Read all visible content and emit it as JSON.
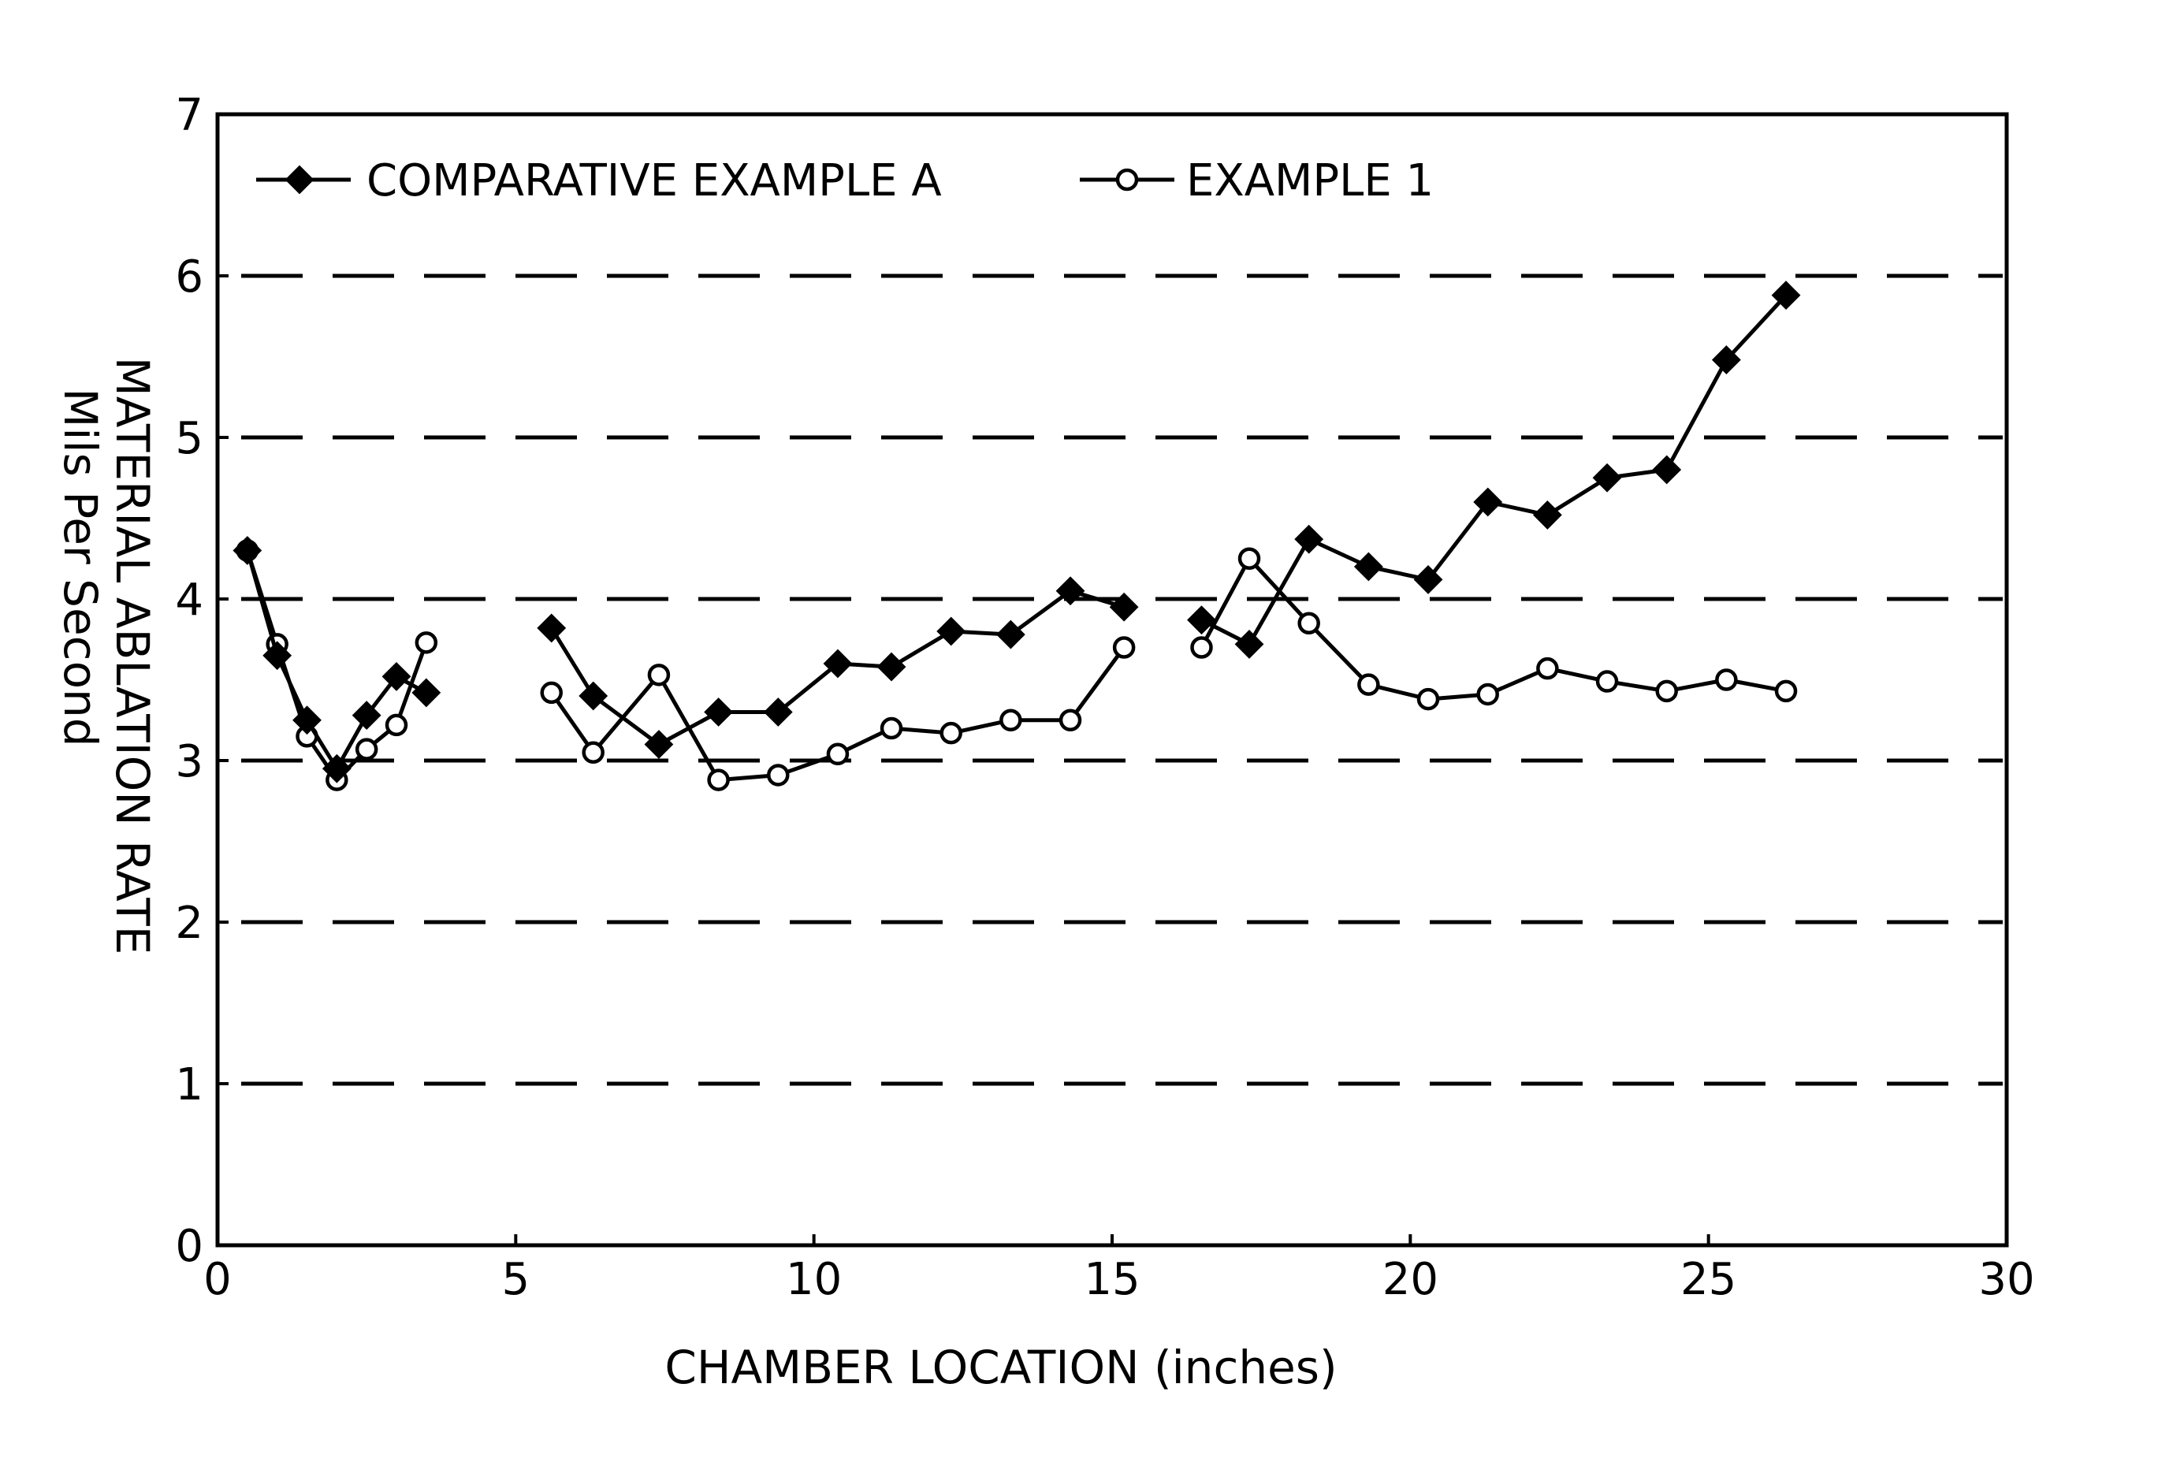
{
  "chart_data": {
    "type": "line",
    "title": "",
    "xlabel": "CHAMBER LOCATION (inches)",
    "ylabel": "MATERIAL ABLATION RATE",
    "ylabel_sub": "Mils Per Second",
    "xlim": [
      0,
      30
    ],
    "ylim": [
      0,
      7
    ],
    "x_ticks": [
      0,
      5,
      10,
      15,
      20,
      25,
      30
    ],
    "y_ticks": [
      0,
      1,
      2,
      3,
      4,
      5,
      6,
      7
    ],
    "gridlines": {
      "y": [
        1,
        2,
        3,
        4,
        5,
        6
      ],
      "style": "dashed",
      "x": false
    },
    "legend_position": "top-left, inside",
    "series": [
      {
        "name": "COMPARATIVE EXAMPLE A",
        "marker": "filled-diamond",
        "color": "#000000",
        "segments": [
          [
            [
              0.5,
              4.3
            ],
            [
              1.0,
              3.65
            ],
            [
              1.5,
              3.25
            ],
            [
              2.0,
              2.95
            ],
            [
              2.5,
              3.28
            ],
            [
              3.0,
              3.52
            ],
            [
              3.5,
              3.42
            ]
          ],
          [
            [
              5.6,
              3.82
            ],
            [
              6.3,
              3.4
            ],
            [
              7.4,
              3.1
            ],
            [
              8.4,
              3.3
            ],
            [
              9.4,
              3.3
            ],
            [
              10.4,
              3.6
            ],
            [
              11.3,
              3.58
            ],
            [
              12.3,
              3.8
            ],
            [
              13.3,
              3.78
            ],
            [
              14.3,
              4.05
            ],
            [
              15.2,
              3.95
            ]
          ],
          [
            [
              16.5,
              3.87
            ],
            [
              17.3,
              3.72
            ],
            [
              18.3,
              4.37
            ],
            [
              19.3,
              4.2
            ],
            [
              20.3,
              4.12
            ],
            [
              21.3,
              4.6
            ],
            [
              22.3,
              4.52
            ],
            [
              23.3,
              4.75
            ],
            [
              24.3,
              4.8
            ],
            [
              25.3,
              5.48
            ],
            [
              26.3,
              5.88
            ]
          ]
        ]
      },
      {
        "name": "EXAMPLE 1",
        "marker": "open-circle",
        "color": "#000000",
        "segments": [
          [
            [
              0.5,
              4.3
            ],
            [
              1.0,
              3.72
            ],
            [
              1.5,
              3.15
            ],
            [
              2.0,
              2.88
            ],
            [
              2.5,
              3.07
            ],
            [
              3.0,
              3.22
            ],
            [
              3.5,
              3.73
            ]
          ],
          [
            [
              5.6,
              3.42
            ],
            [
              6.3,
              3.05
            ],
            [
              7.4,
              3.53
            ],
            [
              8.4,
              2.88
            ],
            [
              9.4,
              2.91
            ],
            [
              10.4,
              3.04
            ],
            [
              11.3,
              3.2
            ],
            [
              12.3,
              3.17
            ],
            [
              13.3,
              3.25
            ],
            [
              14.3,
              3.25
            ],
            [
              15.2,
              3.7
            ]
          ],
          [
            [
              16.5,
              3.7
            ],
            [
              17.3,
              4.25
            ],
            [
              18.3,
              3.85
            ],
            [
              19.3,
              3.47
            ],
            [
              20.3,
              3.38
            ],
            [
              21.3,
              3.41
            ],
            [
              22.3,
              3.57
            ],
            [
              23.3,
              3.49
            ],
            [
              24.3,
              3.43
            ],
            [
              25.3,
              3.5
            ],
            [
              26.3,
              3.43
            ]
          ]
        ]
      }
    ]
  }
}
